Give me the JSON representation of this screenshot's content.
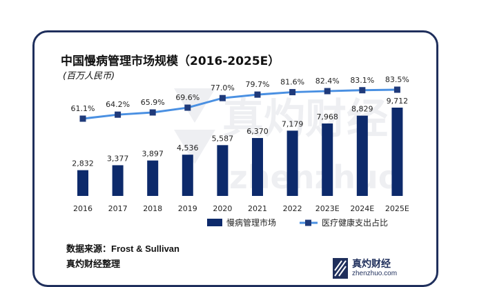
{
  "title": "中国慢病管理市场规模（2016-2025E）",
  "unit": "(百万人民币)",
  "source_label": "数据来源：",
  "source_value": "Frost & Sullivan",
  "credit": "真灼财经整理",
  "watermark": {
    "brand": "真灼财经",
    "url": "zhenzhuo.com"
  },
  "logo": {
    "name": "真灼财经",
    "url": "zhenzhuo.com"
  },
  "colors": {
    "bar": "#0d2a6b",
    "line": "#4a90e2",
    "marker": "#1f3a7a",
    "frame": "#1f2f5c"
  },
  "chart_data": {
    "type": "bar",
    "categories": [
      "2016",
      "2017",
      "2018",
      "2019",
      "2020",
      "2021",
      "2022",
      "2023E",
      "2024E",
      "2025E"
    ],
    "series": [
      {
        "name": "慢病管理市场",
        "type": "bar",
        "values": [
          2832,
          3377,
          3897,
          4536,
          5587,
          6370,
          7179,
          7968,
          8829,
          9712
        ],
        "labels": [
          "2,832",
          "3,377",
          "3,897",
          "4,536",
          "5,587",
          "6,370",
          "7,179",
          "7,968",
          "8,829",
          "9,712"
        ]
      },
      {
        "name": "医疗健康支出占比",
        "type": "line",
        "values": [
          61.1,
          64.2,
          65.9,
          69.6,
          77.0,
          79.7,
          81.6,
          82.4,
          83.1,
          83.5
        ],
        "labels": [
          "61.1%",
          "64.2%",
          "65.9%",
          "69.6%",
          "77.0%",
          "79.7%",
          "81.6%",
          "82.4%",
          "83.1%",
          "83.5%"
        ]
      }
    ],
    "legend_position": "bottom-right",
    "grid": false
  }
}
